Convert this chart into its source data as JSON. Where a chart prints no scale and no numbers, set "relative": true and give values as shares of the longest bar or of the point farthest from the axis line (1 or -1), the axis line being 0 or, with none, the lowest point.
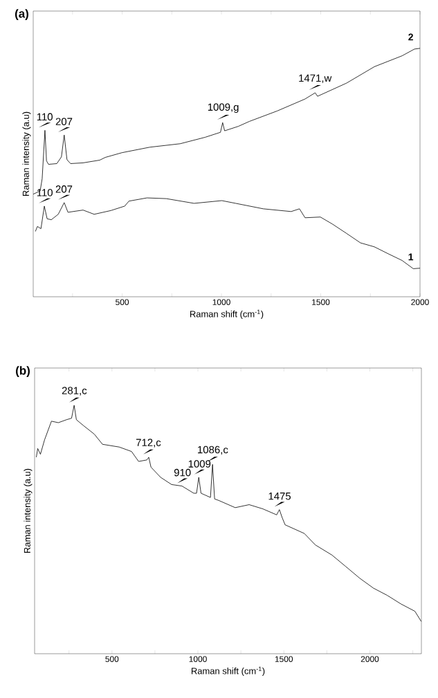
{
  "chart_data": [
    {
      "type": "line",
      "title": "(a)",
      "xlabel": "Raman shift (cm$^{-1}$)",
      "ylabel": "Raman intensity (a.u)",
      "relative": true,
      "marker": "none",
      "line_style": "solid",
      "xlim": [
        52,
        2000
      ],
      "xticks": [
        {
          "value": 250,
          "label": null
        },
        500,
        {
          "value": 750,
          "label": null
        },
        1000,
        {
          "value": 1250,
          "label": null
        },
        1500,
        {
          "value": 1750,
          "label": null
        },
        2000
      ],
      "series": [
        {
          "name": "2",
          "color": "#000000",
          "x": [
            52,
            87,
            97,
            105,
            111,
            119,
            129,
            171,
            194,
            208,
            222,
            240,
            303,
            387,
            415,
            499,
            639,
            792,
            918,
            995,
            1006,
            1016,
            1085,
            1141,
            1281,
            1421,
            1472,
            1484,
            1630,
            1770,
            1910,
            1972,
            2000
          ],
          "values": [
            0.413,
            0.426,
            0.475,
            0.585,
            0.67,
            0.547,
            0.533,
            0.536,
            0.563,
            0.651,
            0.552,
            0.536,
            0.539,
            0.55,
            0.561,
            0.58,
            0.602,
            0.616,
            0.642,
            0.662,
            0.701,
            0.668,
            0.686,
            0.706,
            0.748,
            0.796,
            0.821,
            0.807,
            0.86,
            0.926,
            0.97,
            0.997,
            1.0
          ]
        },
        {
          "name": "1",
          "color": "#000000",
          "x": [
            63,
            73,
            91,
            108,
            122,
            143,
            178,
            208,
            227,
            303,
            359,
            443,
            513,
            534,
            625,
            722,
            862,
            1002,
            1072,
            1211,
            1351,
            1393,
            1421,
            1498,
            1560,
            1630,
            1700,
            1770,
            1840,
            1910,
            1966,
            2000
          ],
          "values": [
            0.263,
            0.283,
            0.274,
            0.365,
            0.314,
            0.31,
            0.332,
            0.379,
            0.34,
            0.349,
            0.332,
            0.347,
            0.365,
            0.385,
            0.398,
            0.395,
            0.376,
            0.387,
            0.376,
            0.354,
            0.343,
            0.354,
            0.318,
            0.321,
            0.292,
            0.255,
            0.217,
            0.201,
            0.173,
            0.146,
            0.113,
            0.115
          ]
        }
      ],
      "annotations": [
        {
          "text": "110",
          "x": 110,
          "y": 0.67
        },
        {
          "text": "207",
          "x": 207,
          "y": 0.651
        },
        {
          "text": "1009,g",
          "x": 1009,
          "y": 0.701
        },
        {
          "text": "1471,w",
          "x": 1471,
          "y": 0.821
        },
        {
          "text": "110",
          "x": 110,
          "y": 0.365
        },
        {
          "text": "207",
          "x": 207,
          "y": 0.379
        }
      ]
    },
    {
      "type": "line",
      "title": "(b)",
      "xlabel": "Raman shift (cm$^{-1}$)",
      "ylabel": "Raman intensity (a.u)",
      "relative": true,
      "marker": "none",
      "line_style": "solid",
      "xlim": [
        50,
        2300
      ],
      "xticks": [
        {
          "value": 250,
          "label": null
        },
        500,
        {
          "value": 750,
          "label": null
        },
        1000,
        {
          "value": 1250,
          "label": null
        },
        1500,
        {
          "value": 1750,
          "label": null
        },
        2000,
        {
          "value": 2250,
          "label": null
        }
      ],
      "series": [
        {
          "color": "#000000",
          "x": [
            60,
            68,
            84,
            108,
            148,
            188,
            236,
            265,
            280,
            293,
            333,
            397,
            445,
            542,
            614,
            655,
            703,
            714,
            727,
            783,
            847,
            907,
            976,
            992,
            1005,
            1018,
            1073,
            1085,
            1097,
            1121,
            1217,
            1298,
            1378,
            1458,
            1474,
            1490,
            1507,
            1619,
            1683,
            1780,
            1860,
            1941,
            2021,
            2101,
            2182,
            2262,
            2299
          ],
          "values": [
            0.791,
            0.826,
            0.803,
            0.861,
            0.936,
            0.93,
            0.942,
            0.948,
            1.0,
            0.942,
            0.919,
            0.884,
            0.843,
            0.832,
            0.814,
            0.774,
            0.78,
            0.791,
            0.751,
            0.71,
            0.681,
            0.675,
            0.646,
            0.646,
            0.71,
            0.646,
            0.629,
            0.762,
            0.623,
            0.617,
            0.588,
            0.6,
            0.583,
            0.559,
            0.58,
            0.548,
            0.519,
            0.484,
            0.438,
            0.397,
            0.351,
            0.304,
            0.264,
            0.235,
            0.2,
            0.171,
            0.13
          ]
        }
      ],
      "annotations": [
        {
          "text": "281,c",
          "x": 281,
          "y": 1.0
        },
        {
          "text": "712,c",
          "x": 712,
          "y": 0.791
        },
        {
          "text": "910",
          "x": 910,
          "y": 0.675
        },
        {
          "text": "1009",
          "x": 1009,
          "y": 0.71
        },
        {
          "text": "1086,c",
          "x": 1086,
          "y": 0.762
        },
        {
          "text": "1475",
          "x": 1475,
          "y": 0.58
        }
      ]
    }
  ]
}
